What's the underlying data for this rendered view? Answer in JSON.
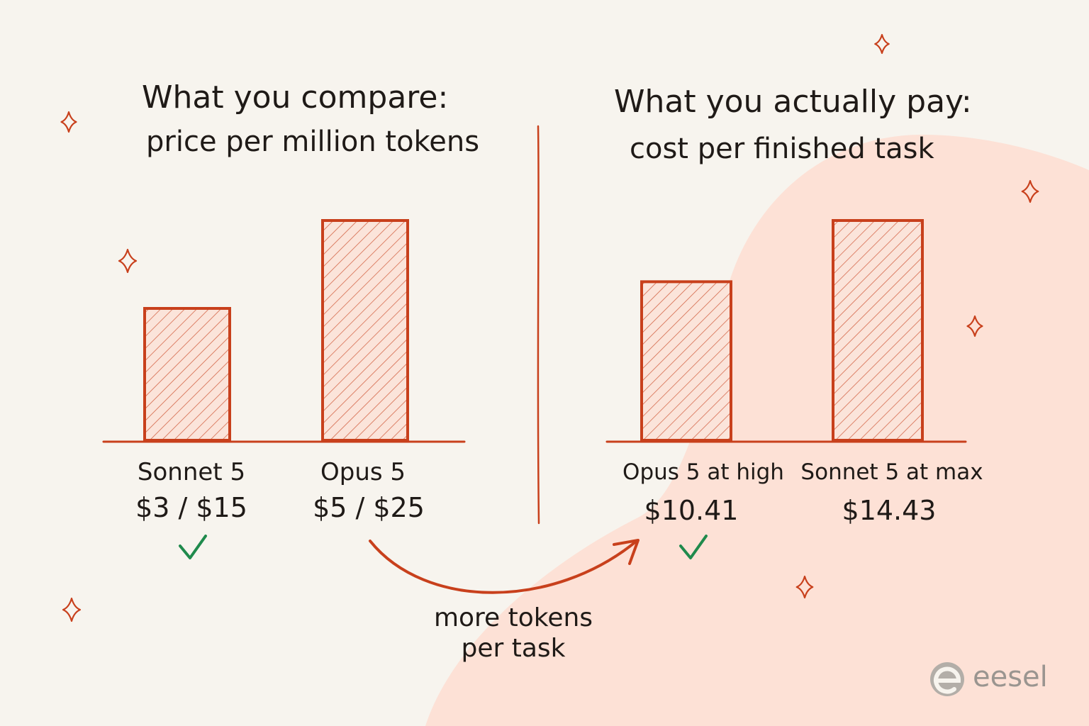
{
  "colors": {
    "accent": "#c8401c",
    "check": "#1f8a4c",
    "blob": "#fde1d6",
    "background": "#f7f4ee",
    "text": "#1f1a17",
    "brand": "#9a9590"
  },
  "chart_data": [
    {
      "type": "bar",
      "title": "What you compare:",
      "subtitle": "price per million tokens",
      "categories": [
        "Sonnet 5",
        "Opus 5"
      ],
      "value_labels": [
        "$3 / $15",
        "$5 / $25"
      ],
      "values": [
        15,
        25
      ],
      "checkmark_index": 0
    },
    {
      "type": "bar",
      "title": "What you actually pay:",
      "subtitle": "cost per finished task",
      "categories": [
        "Opus 5 at high",
        "Sonnet 5 at max"
      ],
      "value_labels": [
        "$10.41",
        "$14.43"
      ],
      "values": [
        10.41,
        14.43
      ],
      "checkmark_index": 0
    }
  ],
  "annotation": {
    "line1": "more tokens",
    "line2": "per task"
  },
  "brand": {
    "name": "eesel",
    "icon": "eesel-logo-icon"
  },
  "decorations": {
    "icon": "sparkle-icon",
    "check_icon": "checkmark-icon",
    "arrow_icon": "curved-arrow-icon"
  }
}
